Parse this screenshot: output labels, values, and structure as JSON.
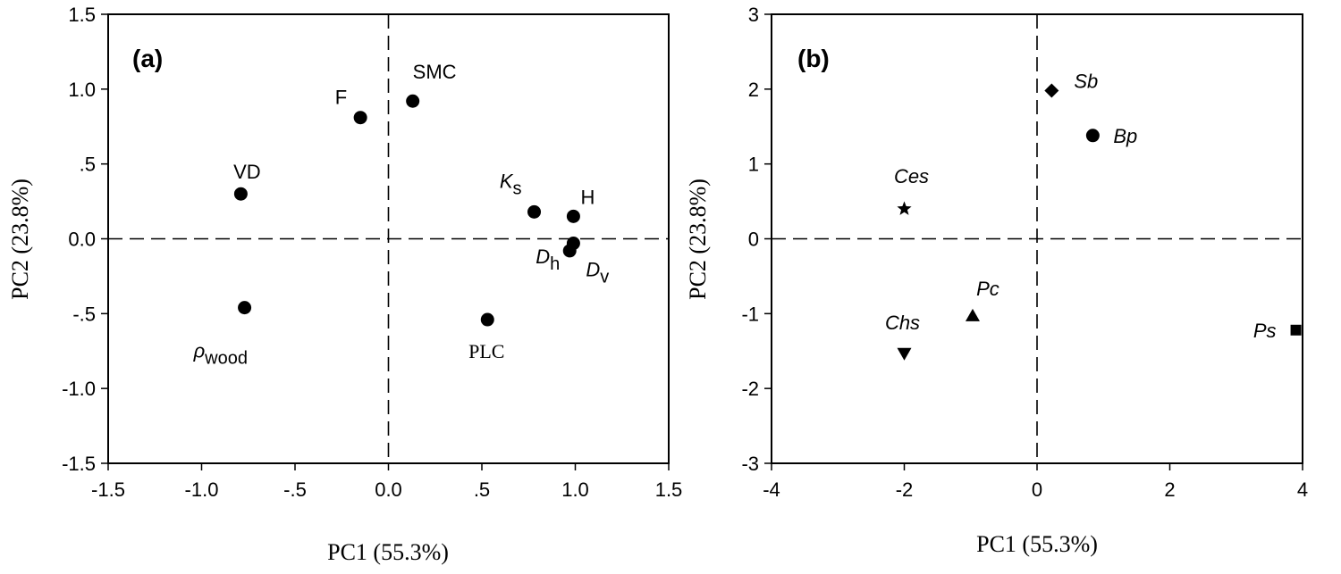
{
  "chart_data": [
    {
      "type": "scatter",
      "panel_label": "(a)",
      "xlabel": "PC1 (55.3%)",
      "ylabel": "PC2 (23.8%)",
      "xlim": [
        -1.5,
        1.5
      ],
      "ylim": [
        -1.5,
        1.5
      ],
      "xticks": [
        {
          "value": -1.5,
          "label": "-1.5"
        },
        {
          "value": -1.0,
          "label": "-1.0"
        },
        {
          "value": -0.5,
          "label": "-.5"
        },
        {
          "value": 0.0,
          "label": "0.0"
        },
        {
          "value": 0.5,
          "label": ".5"
        },
        {
          "value": 1.0,
          "label": "1.0"
        },
        {
          "value": 1.5,
          "label": "1.5"
        }
      ],
      "yticks": [
        {
          "value": 1.5,
          "label": "1.5"
        },
        {
          "value": 1.0,
          "label": "1.0"
        },
        {
          "value": 0.5,
          "label": ".5"
        },
        {
          "value": 0.0,
          "label": "0.0"
        },
        {
          "value": -0.5,
          "label": "-.5"
        },
        {
          "value": -1.0,
          "label": "-1.0"
        },
        {
          "value": -1.5,
          "label": "-1.5"
        }
      ],
      "points": [
        {
          "x": 0.13,
          "y": 0.92,
          "label": "SMC",
          "marker": "circle"
        },
        {
          "x": -0.15,
          "y": 0.81,
          "label": "F",
          "marker": "circle"
        },
        {
          "x": -0.79,
          "y": 0.3,
          "label": "VD",
          "marker": "circle"
        },
        {
          "x": 0.78,
          "y": 0.18,
          "label": "K",
          "sub": "s",
          "italic": true,
          "marker": "circle"
        },
        {
          "x": 0.99,
          "y": 0.15,
          "label": "H",
          "marker": "circle"
        },
        {
          "x": 0.99,
          "y": -0.03,
          "label": "D",
          "sub": "v",
          "italic": true,
          "marker": "circle"
        },
        {
          "x": 0.97,
          "y": -0.08,
          "label": "D",
          "sub": "h",
          "italic": true,
          "marker": "circle"
        },
        {
          "x": -0.77,
          "y": -0.46,
          "label": "ρ",
          "sub": "wood",
          "italic": true,
          "marker": "circle"
        },
        {
          "x": 0.53,
          "y": -0.54,
          "label": "PLC",
          "serif": true,
          "marker": "circle"
        }
      ]
    },
    {
      "type": "scatter",
      "panel_label": "(b)",
      "xlabel": "PC1 (55.3%)",
      "ylabel": "PC2 (23.8%)",
      "xlim": [
        -4,
        4
      ],
      "ylim": [
        -3,
        3
      ],
      "xticks": [
        {
          "value": -4,
          "label": "-4"
        },
        {
          "value": -2,
          "label": "-2"
        },
        {
          "value": 0,
          "label": "0"
        },
        {
          "value": 2,
          "label": "2"
        },
        {
          "value": 4,
          "label": "4"
        }
      ],
      "yticks": [
        {
          "value": 3,
          "label": "3"
        },
        {
          "value": 2,
          "label": "2"
        },
        {
          "value": 1,
          "label": "1"
        },
        {
          "value": 0,
          "label": "0"
        },
        {
          "value": -1,
          "label": "-1"
        },
        {
          "value": -2,
          "label": "-2"
        },
        {
          "value": -3,
          "label": "-3"
        }
      ],
      "points": [
        {
          "x": 0.22,
          "y": 1.98,
          "label": "Sb",
          "italic": true,
          "marker": "diamond"
        },
        {
          "x": 0.84,
          "y": 1.38,
          "label": "Bp",
          "italic": true,
          "marker": "circle"
        },
        {
          "x": -2.0,
          "y": 0.4,
          "label": "Ces",
          "italic": true,
          "marker": "star"
        },
        {
          "x": -0.97,
          "y": -1.03,
          "label": "Pc",
          "italic": true,
          "marker": "triangle-up"
        },
        {
          "x": -2.0,
          "y": -1.53,
          "label": "Chs",
          "italic": true,
          "marker": "triangle-down"
        },
        {
          "x": 3.9,
          "y": -1.22,
          "label": "Ps",
          "italic": true,
          "marker": "square"
        }
      ]
    }
  ]
}
